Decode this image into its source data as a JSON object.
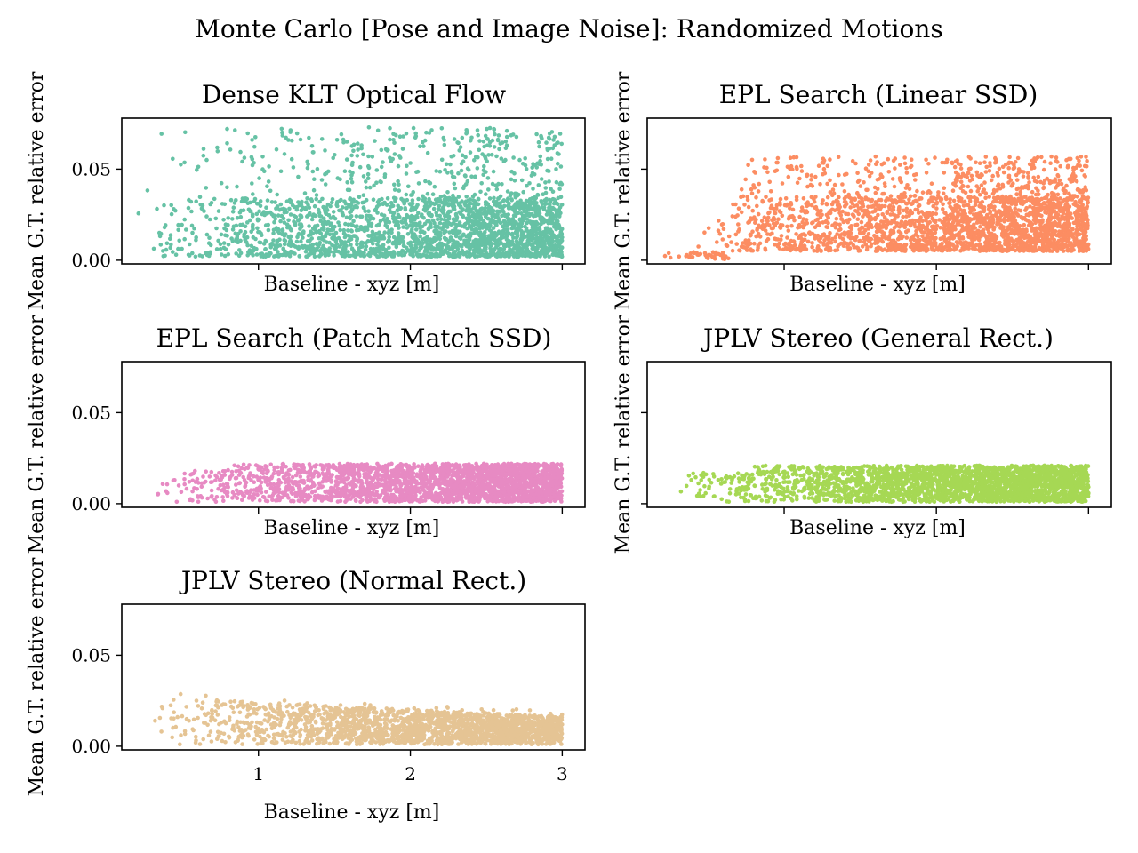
{
  "figure": {
    "title": "Monte Carlo [Pose and Image Noise]: Randomized Motions"
  },
  "chart_data": [
    {
      "type": "scatter",
      "title": "Dense KLT Optical Flow",
      "xlabel": "Baseline - xyz [m]",
      "ylabel": "Mean G.T. relative error",
      "xlim": [
        0.1,
        3.15
      ],
      "ylim": [
        -0.002,
        0.078
      ],
      "xticks": [
        1,
        2,
        3
      ],
      "yticks": [
        0.0,
        0.05
      ],
      "ytick_labels": [
        "0.00",
        "0.05"
      ],
      "show_xtick_labels": false,
      "show_ytick_labels": true,
      "color": "#66c2a5",
      "grid": false,
      "points": {
        "count": 2600,
        "x_range": [
          0.2,
          3.0
        ],
        "y_range": [
          0.002,
          0.073
        ],
        "note_shape": "dense band y<0.03, sparse up to 0.073"
      }
    },
    {
      "type": "scatter",
      "title": "EPL Search (Linear SSD)",
      "xlabel": "Baseline - xyz [m]",
      "ylabel": "Mean G.T. relative error",
      "xlim": [
        0.1,
        3.15
      ],
      "ylim": [
        -0.002,
        0.078
      ],
      "xticks": [
        1,
        2,
        3
      ],
      "yticks": [
        0.0,
        0.05
      ],
      "show_xtick_labels": false,
      "show_ytick_labels": false,
      "color": "#fc8d62",
      "grid": false,
      "points": {
        "count": 2600,
        "x_range": [
          0.2,
          3.0
        ],
        "y_range": [
          0.0,
          0.057
        ]
      }
    },
    {
      "type": "scatter",
      "title": "EPL Search (Patch Match SSD)",
      "xlabel": "Baseline - xyz [m]",
      "ylabel": "Mean G.T. relative error",
      "xlim": [
        0.1,
        3.15
      ],
      "ylim": [
        -0.002,
        0.078
      ],
      "xticks": [
        1,
        2,
        3
      ],
      "yticks": [
        0.0,
        0.05
      ],
      "ytick_labels": [
        "0.00",
        "0.05"
      ],
      "show_xtick_labels": false,
      "show_ytick_labels": true,
      "color": "#e78ac3",
      "grid": false,
      "points": {
        "count": 2600,
        "x_range": [
          0.3,
          3.0
        ],
        "y_range": [
          0.001,
          0.022
        ]
      }
    },
    {
      "type": "scatter",
      "title": "JPLV Stereo (General Rect.)",
      "xlabel": "Baseline - xyz [m]",
      "ylabel": "Mean G.T. relative error",
      "xlim": [
        0.1,
        3.15
      ],
      "ylim": [
        -0.002,
        0.078
      ],
      "xticks": [
        1,
        2,
        3
      ],
      "yticks": [
        0.0,
        0.05
      ],
      "show_xtick_labels": false,
      "show_ytick_labels": false,
      "color": "#a6d854",
      "grid": false,
      "points": {
        "count": 2600,
        "x_range": [
          0.3,
          3.0
        ],
        "y_range": [
          0.001,
          0.021
        ]
      }
    },
    {
      "type": "scatter",
      "title": "JPLV Stereo (Normal Rect.)",
      "xlabel": "Baseline - xyz [m]",
      "ylabel": "Mean G.T. relative error",
      "xlim": [
        0.1,
        3.15
      ],
      "ylim": [
        -0.002,
        0.078
      ],
      "xticks": [
        1,
        2,
        3
      ],
      "xtick_labels": [
        "1",
        "2",
        "3"
      ],
      "yticks": [
        0.0,
        0.05
      ],
      "ytick_labels": [
        "0.00",
        "0.05"
      ],
      "show_xtick_labels": true,
      "show_ytick_labels": true,
      "color": "#e5c494",
      "grid": false,
      "points": {
        "count": 2200,
        "x_range": [
          0.3,
          3.0
        ],
        "y_range": [
          0.001,
          0.027
        ]
      }
    }
  ]
}
